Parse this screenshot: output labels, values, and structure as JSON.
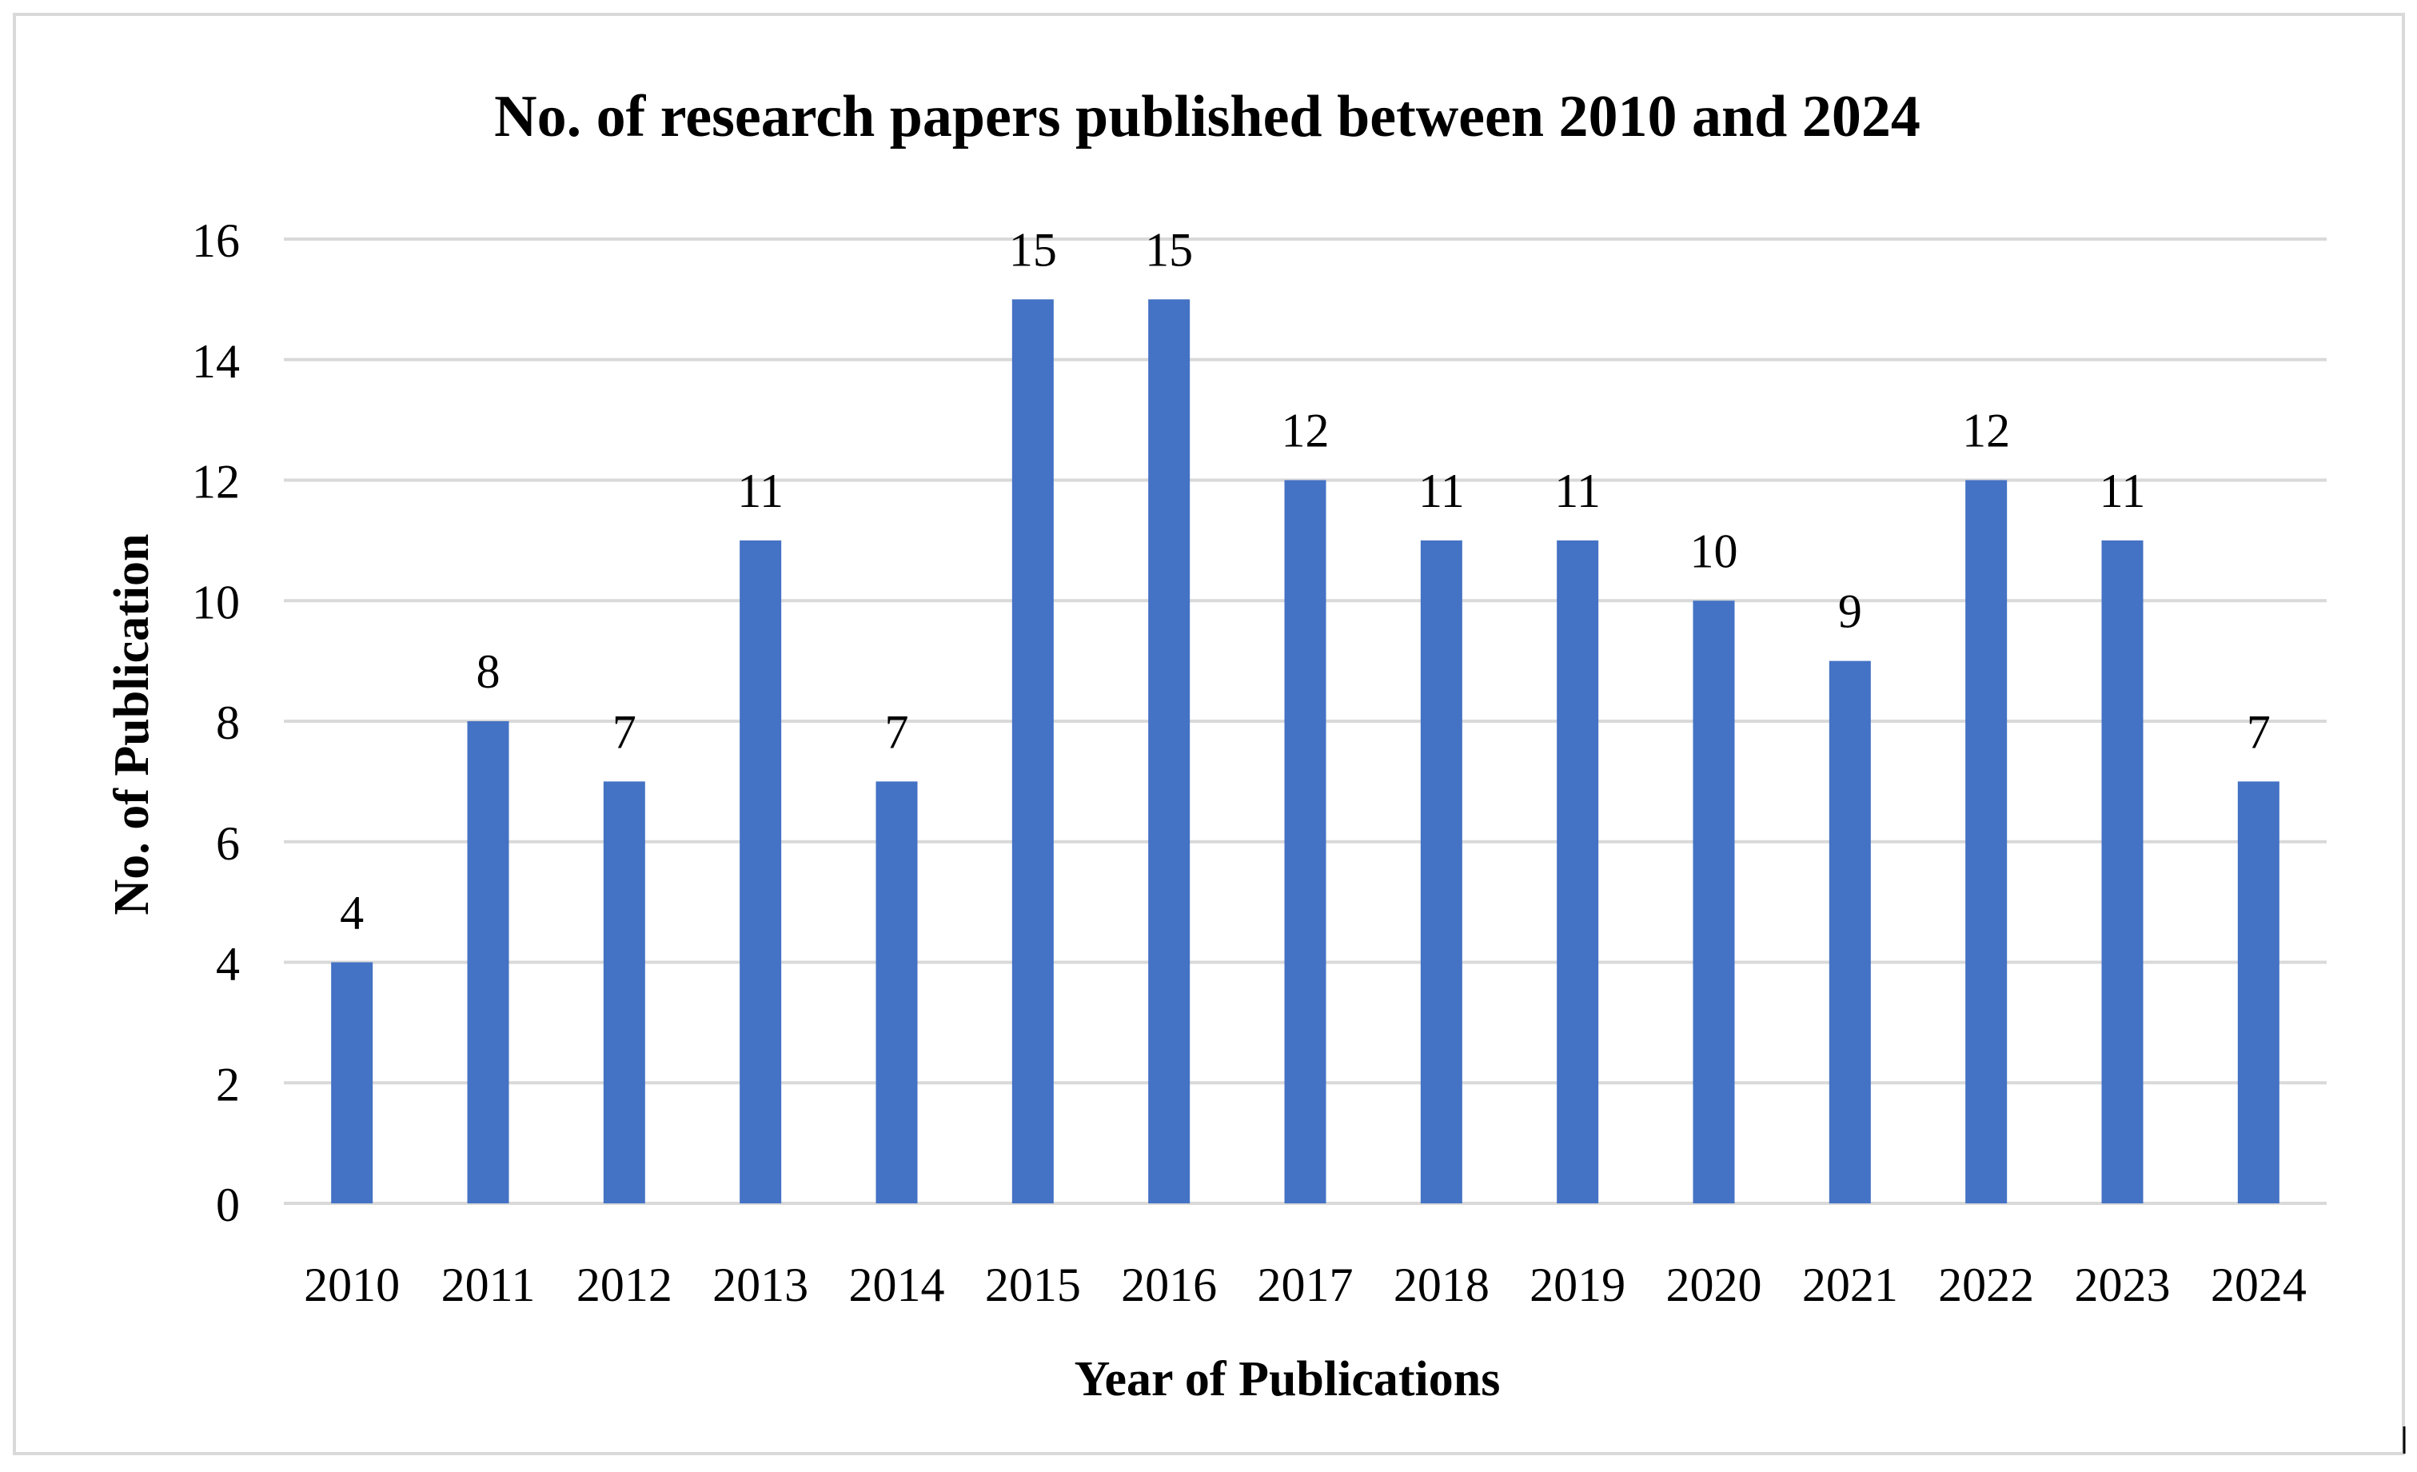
{
  "chart_data": {
    "type": "bar",
    "title": "No. of research papers published between 2010 and 2024",
    "xlabel": "Year of Publications",
    "ylabel": "No. of Publication",
    "categories": [
      "2010",
      "2011",
      "2012",
      "2013",
      "2014",
      "2015",
      "2016",
      "2017",
      "2018",
      "2019",
      "2020",
      "2021",
      "2022",
      "2023",
      "2024"
    ],
    "series": [
      {
        "name": "No. of Publication",
        "values": [
          4,
          8,
          7,
          11,
          7,
          15,
          15,
          12,
          11,
          11,
          10,
          9,
          12,
          11,
          7
        ]
      }
    ],
    "ylim": [
      0,
      16
    ],
    "yticks": [
      0,
      2,
      4,
      6,
      8,
      10,
      12,
      14,
      16
    ],
    "grid": true,
    "legend": "none",
    "bar_color": "#4472c4",
    "grid_color": "#d9d9d9",
    "data_labels": true
  }
}
